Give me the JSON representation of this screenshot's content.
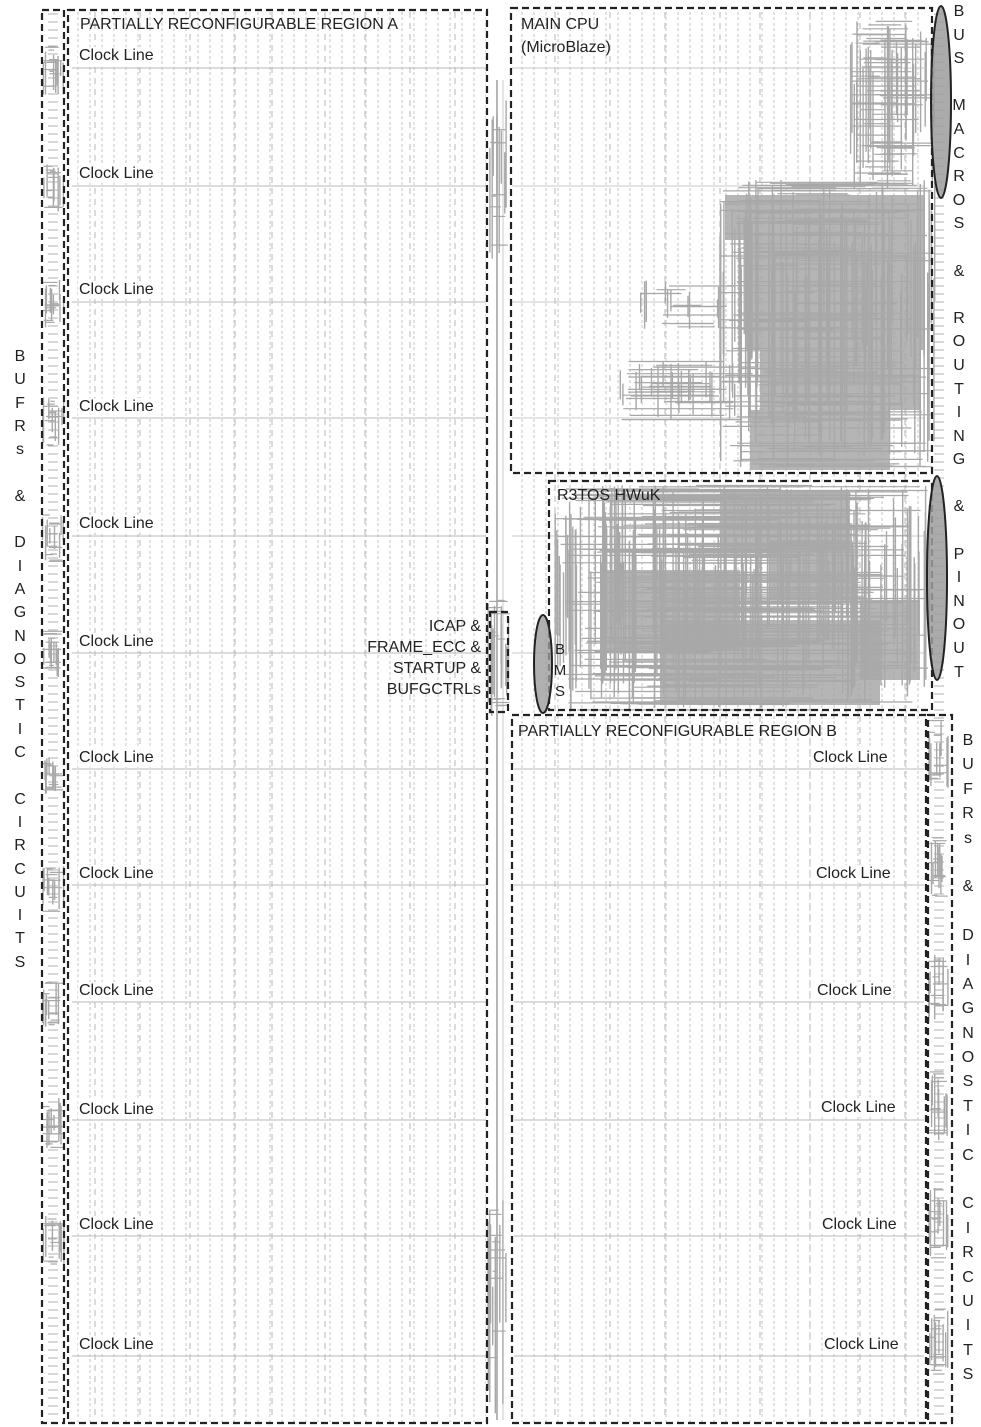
{
  "colors": {
    "routing": "#a8a8a8",
    "frame": "#222222",
    "grid": "#b8b8b8"
  },
  "regions": {
    "pr_a": "PARTIALLY RECONFIGURABLE REGION A",
    "main_cpu_line1": "MAIN CPU",
    "main_cpu_line2": "(MicroBlaze)",
    "r3tos": "R3TOS HWuK",
    "pr_b": "PARTIALLY RECONFIGURABLE REGION B"
  },
  "clock_line_label": "Clock Line",
  "icap_lines": [
    "ICAP &",
    "FRAME_ECC &",
    "STARTUP &",
    "BUFGCTRLs"
  ],
  "bms_letters": [
    "B",
    "M",
    "S"
  ],
  "left_column_letters": [
    "B",
    "U",
    "F",
    "R",
    "s",
    "",
    "&",
    "",
    "D",
    "I",
    "A",
    "G",
    "N",
    "O",
    "S",
    "T",
    "I",
    "C",
    "",
    "C",
    "I",
    "R",
    "C",
    "U",
    "I",
    "T",
    "S"
  ],
  "right_top_letters": [
    "B",
    "U",
    "S",
    "",
    "M",
    "A",
    "C",
    "R",
    "O",
    "S",
    "",
    "&",
    "",
    "R",
    "O",
    "U",
    "T",
    "I",
    "N",
    "G",
    "",
    "&",
    "",
    "P",
    "I",
    "N",
    "O",
    "U",
    "T"
  ],
  "right_bottom_letters": [
    "B",
    "U",
    "F",
    "R",
    "s",
    "",
    "&",
    "",
    "D",
    "I",
    "A",
    "G",
    "N",
    "O",
    "S",
    "T",
    "I",
    "C",
    "",
    "C",
    "I",
    "R",
    "C",
    "U",
    "I",
    "T",
    "S"
  ]
}
